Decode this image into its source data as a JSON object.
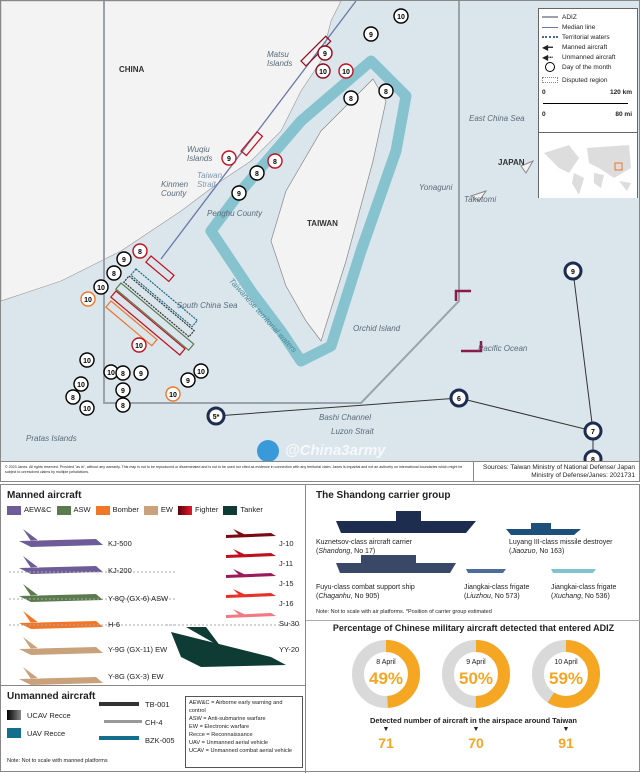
{
  "map": {
    "labels": {
      "china": "CHINA",
      "taiwan": "TAIWAN",
      "japan": "JAPAN",
      "matsu": "Matsu Islands",
      "wuqiu": "Wuqiu Islands",
      "kinmen": "Kinmen County",
      "strait": "Taiwan Strait",
      "penghu": "Penghu County",
      "scs": "South China Sea",
      "territorial": "Taiwanese territorial waters",
      "ecs": "East China Sea",
      "yonaguni": "Yonaguni",
      "taketomi": "Taketomi",
      "orchid": "Orchid Island",
      "pacific": "Pacific Ocean",
      "bashi": "Bashi Channel",
      "luzon": "Luzon Strait",
      "pratas": "Pratas Islands"
    },
    "legend": {
      "adiz": "ADIZ",
      "median": "Median line",
      "territorial": "Territorial waters",
      "manned": "Manned aircraft",
      "unmanned": "Unmanned aircraft",
      "day": "Day of the month",
      "disputed": "Disputed region",
      "scale_km_0": "0",
      "scale_km": "120 km",
      "scale_mi_0": "0",
      "scale_mi": "80 mi"
    },
    "day_markers": [
      10,
      9,
      10,
      9,
      8,
      8,
      10,
      8,
      9,
      8,
      9,
      8,
      8,
      9,
      10,
      10,
      10,
      10,
      10,
      8,
      9,
      10,
      9,
      8,
      10,
      8,
      10,
      9,
      10
    ],
    "carrier_days": [
      "5*",
      "6",
      "7",
      "9",
      "8"
    ],
    "watermark": "@China3army"
  },
  "footer": {
    "copyright": "© 2023 Janes. All rights reserved. Provided \"as is\", without any warranty. This map is not to be reproduced or disseminated and is not to be used nor cited as evidence in connection with any territorial claim. Janes is impartial and not an authority on international boundaries which might be subject to unresolved claims by multiple jurisdictions.",
    "sources": "Sources: Taiwan Ministry of National Defense/ Japan Ministry of Defense/Janes: 2021731"
  },
  "manned": {
    "title": "Manned aircraft",
    "categories": [
      {
        "label": "AEW&C",
        "color": "#6d5c98"
      },
      {
        "label": "ASW",
        "color": "#5b7b4f"
      },
      {
        "label": "Bomber",
        "color": "#f07628"
      },
      {
        "label": "EW",
        "color": "#c9a27c"
      },
      {
        "label": "Fighter",
        "color": "#c0101e"
      },
      {
        "label": "Tanker",
        "color": "#0e3b34"
      }
    ],
    "aircraft": [
      "KJ-500",
      "KJ-200",
      "Y-8Q  (GX-6) ASW",
      "H-6",
      "Y-9G (GX-11) EW",
      "Y-8G (GX-3) EW",
      "J-10",
      "J-11",
      "J-15",
      "J-16",
      "Su-30",
      "YY-20"
    ]
  },
  "unmanned": {
    "title": "Unmanned aircraft",
    "ucav": "UCAV Recce",
    "uav": "UAV Recce",
    "aircraft": [
      "TB-001",
      "CH-4",
      "BZK-005"
    ],
    "note": "Note: Not to scale with manned platforms",
    "abbr": [
      "AEW&C = Airborne early warning and control",
      "ASW = Anti-submarine warfare",
      "EW = Electronic warfare",
      "Recce = Reconnaissance",
      "UAV = Unmanned aerial vehicle",
      "UCAV = Unmanned combat aerial vehicle"
    ]
  },
  "carrier": {
    "title": "The Shandong carrier group",
    "ships": [
      {
        "cls": "Kuznetsov-class aircraft carrier",
        "name": "Shandong",
        "no": ", No 17)"
      },
      {
        "cls": "Luyang III-class missile destroyer",
        "name": "Jiaozuo",
        "no": ", No 163)"
      },
      {
        "cls": "Fuyu-class combat support ship",
        "name": "Chaganhu",
        "no": ", No 905)"
      },
      {
        "cls": "Jiangkai-class frigate",
        "name": "Liuzhou",
        "no": ", No 573)"
      },
      {
        "cls": "Jiangkai-class frigate",
        "name": "Xuchang",
        "no": ", No 536)"
      }
    ],
    "note": "Note: Not to scale with air platforms. *Position of carrier group estimated"
  },
  "adiz": {
    "title": "Percentage of Chinese military aircraft detected that entered ADIZ",
    "subtitle": "Detected number of aircraft in the airspace around Taiwan",
    "days": [
      {
        "date": "8 April",
        "pct": 49,
        "pct_label": "49%",
        "count": "71"
      },
      {
        "date": "9 April",
        "pct": 50,
        "pct_label": "50%",
        "count": "70"
      },
      {
        "date": "10 April",
        "pct": 59,
        "pct_label": "59%",
        "count": "91"
      }
    ],
    "colors": {
      "fill": "#f5a623",
      "rest": "#d9d9d9"
    }
  }
}
